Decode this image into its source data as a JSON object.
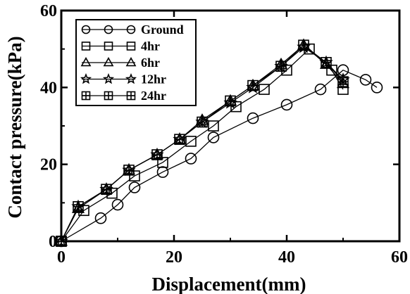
{
  "chart_data": {
    "type": "line",
    "title": "",
    "xlabel": "Displacement(mm)",
    "ylabel": "Contact pressure(kPa)",
    "xlim": [
      0,
      60
    ],
    "ylim": [
      0,
      60
    ],
    "xticks": [
      "0",
      "20",
      "40",
      "60"
    ],
    "yticks": [
      "0",
      "20",
      "40",
      "60"
    ],
    "grid": false,
    "legend_position": "top-left",
    "series": [
      {
        "name": "Ground",
        "marker": "circle",
        "x": [
          0,
          7,
          10,
          13,
          18,
          23,
          27,
          34,
          40,
          46,
          50,
          54,
          56
        ],
        "y": [
          0,
          6,
          9.5,
          14,
          18,
          21.5,
          27,
          32,
          35.5,
          39.5,
          44.5,
          42,
          40
        ]
      },
      {
        "name": "4hr",
        "marker": "square",
        "x": [
          0,
          4,
          9,
          13,
          18,
          23,
          27,
          31,
          36,
          40,
          44,
          48,
          50
        ],
        "y": [
          0,
          8,
          12.5,
          17,
          20.5,
          26,
          30,
          35,
          39.5,
          44.5,
          50,
          44.5,
          39.5
        ]
      },
      {
        "name": "6hr",
        "marker": "triangle",
        "x": [
          0,
          3,
          8,
          12,
          17,
          21,
          25,
          30,
          34,
          39,
          43,
          47,
          50
        ],
        "y": [
          0,
          8.5,
          13.5,
          18.5,
          22.5,
          26.5,
          31.5,
          36.5,
          40.5,
          46,
          51,
          46,
          41
        ]
      },
      {
        "name": "12hr",
        "marker": "star",
        "x": [
          0,
          3,
          8,
          12,
          17,
          21,
          25,
          30,
          34,
          39,
          43,
          47,
          50
        ],
        "y": [
          0,
          9,
          13.5,
          18.5,
          22.5,
          26.5,
          31,
          36,
          40,
          45.5,
          50.5,
          46.5,
          42
        ]
      },
      {
        "name": "24hr",
        "marker": "plus-square",
        "x": [
          0,
          3,
          8,
          12,
          17,
          21,
          25,
          30,
          34,
          39,
          43,
          47,
          50
        ],
        "y": [
          0,
          9,
          13.5,
          18.5,
          22.5,
          26.5,
          31,
          36.5,
          40.5,
          45.5,
          51,
          46.5,
          41.5
        ]
      }
    ]
  }
}
